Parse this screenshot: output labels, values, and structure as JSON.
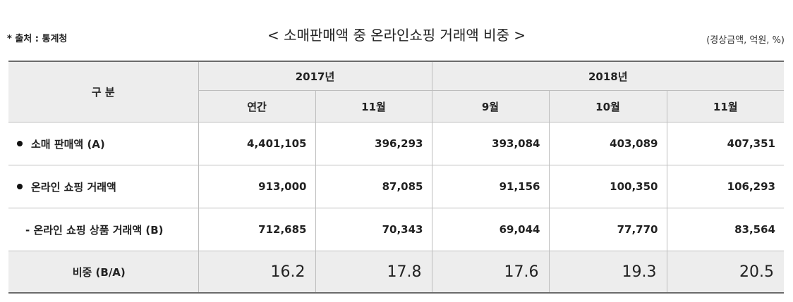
{
  "header": {
    "source": "* 출처 : 통계청",
    "title": "< 소매판매액 중 온라인쇼핑 거래액 비중 >",
    "unit": "(경상금액, 억원, %)"
  },
  "table": {
    "corner": "구 분",
    "years": [
      "2017년",
      "2018년"
    ],
    "months": [
      "연간",
      "11월",
      "9월",
      "10월",
      "11월"
    ],
    "rows": [
      {
        "label": "소매 판매액 (A)",
        "values": [
          "4,401,105",
          "396,293",
          "393,084",
          "403,089",
          "407,351"
        ]
      },
      {
        "label": "온라인 쇼핑 거래액",
        "values": [
          "913,000",
          "87,085",
          "91,156",
          "100,350",
          "106,293"
        ]
      },
      {
        "label": "- 온라인 쇼핑 상품 거래액 (B)",
        "values": [
          "712,685",
          "70,343",
          "69,044",
          "77,770",
          "83,564"
        ]
      },
      {
        "label": "비중 (B/A)",
        "values": [
          "16.2",
          "17.8",
          "17.6",
          "19.3",
          "20.5"
        ]
      }
    ]
  }
}
